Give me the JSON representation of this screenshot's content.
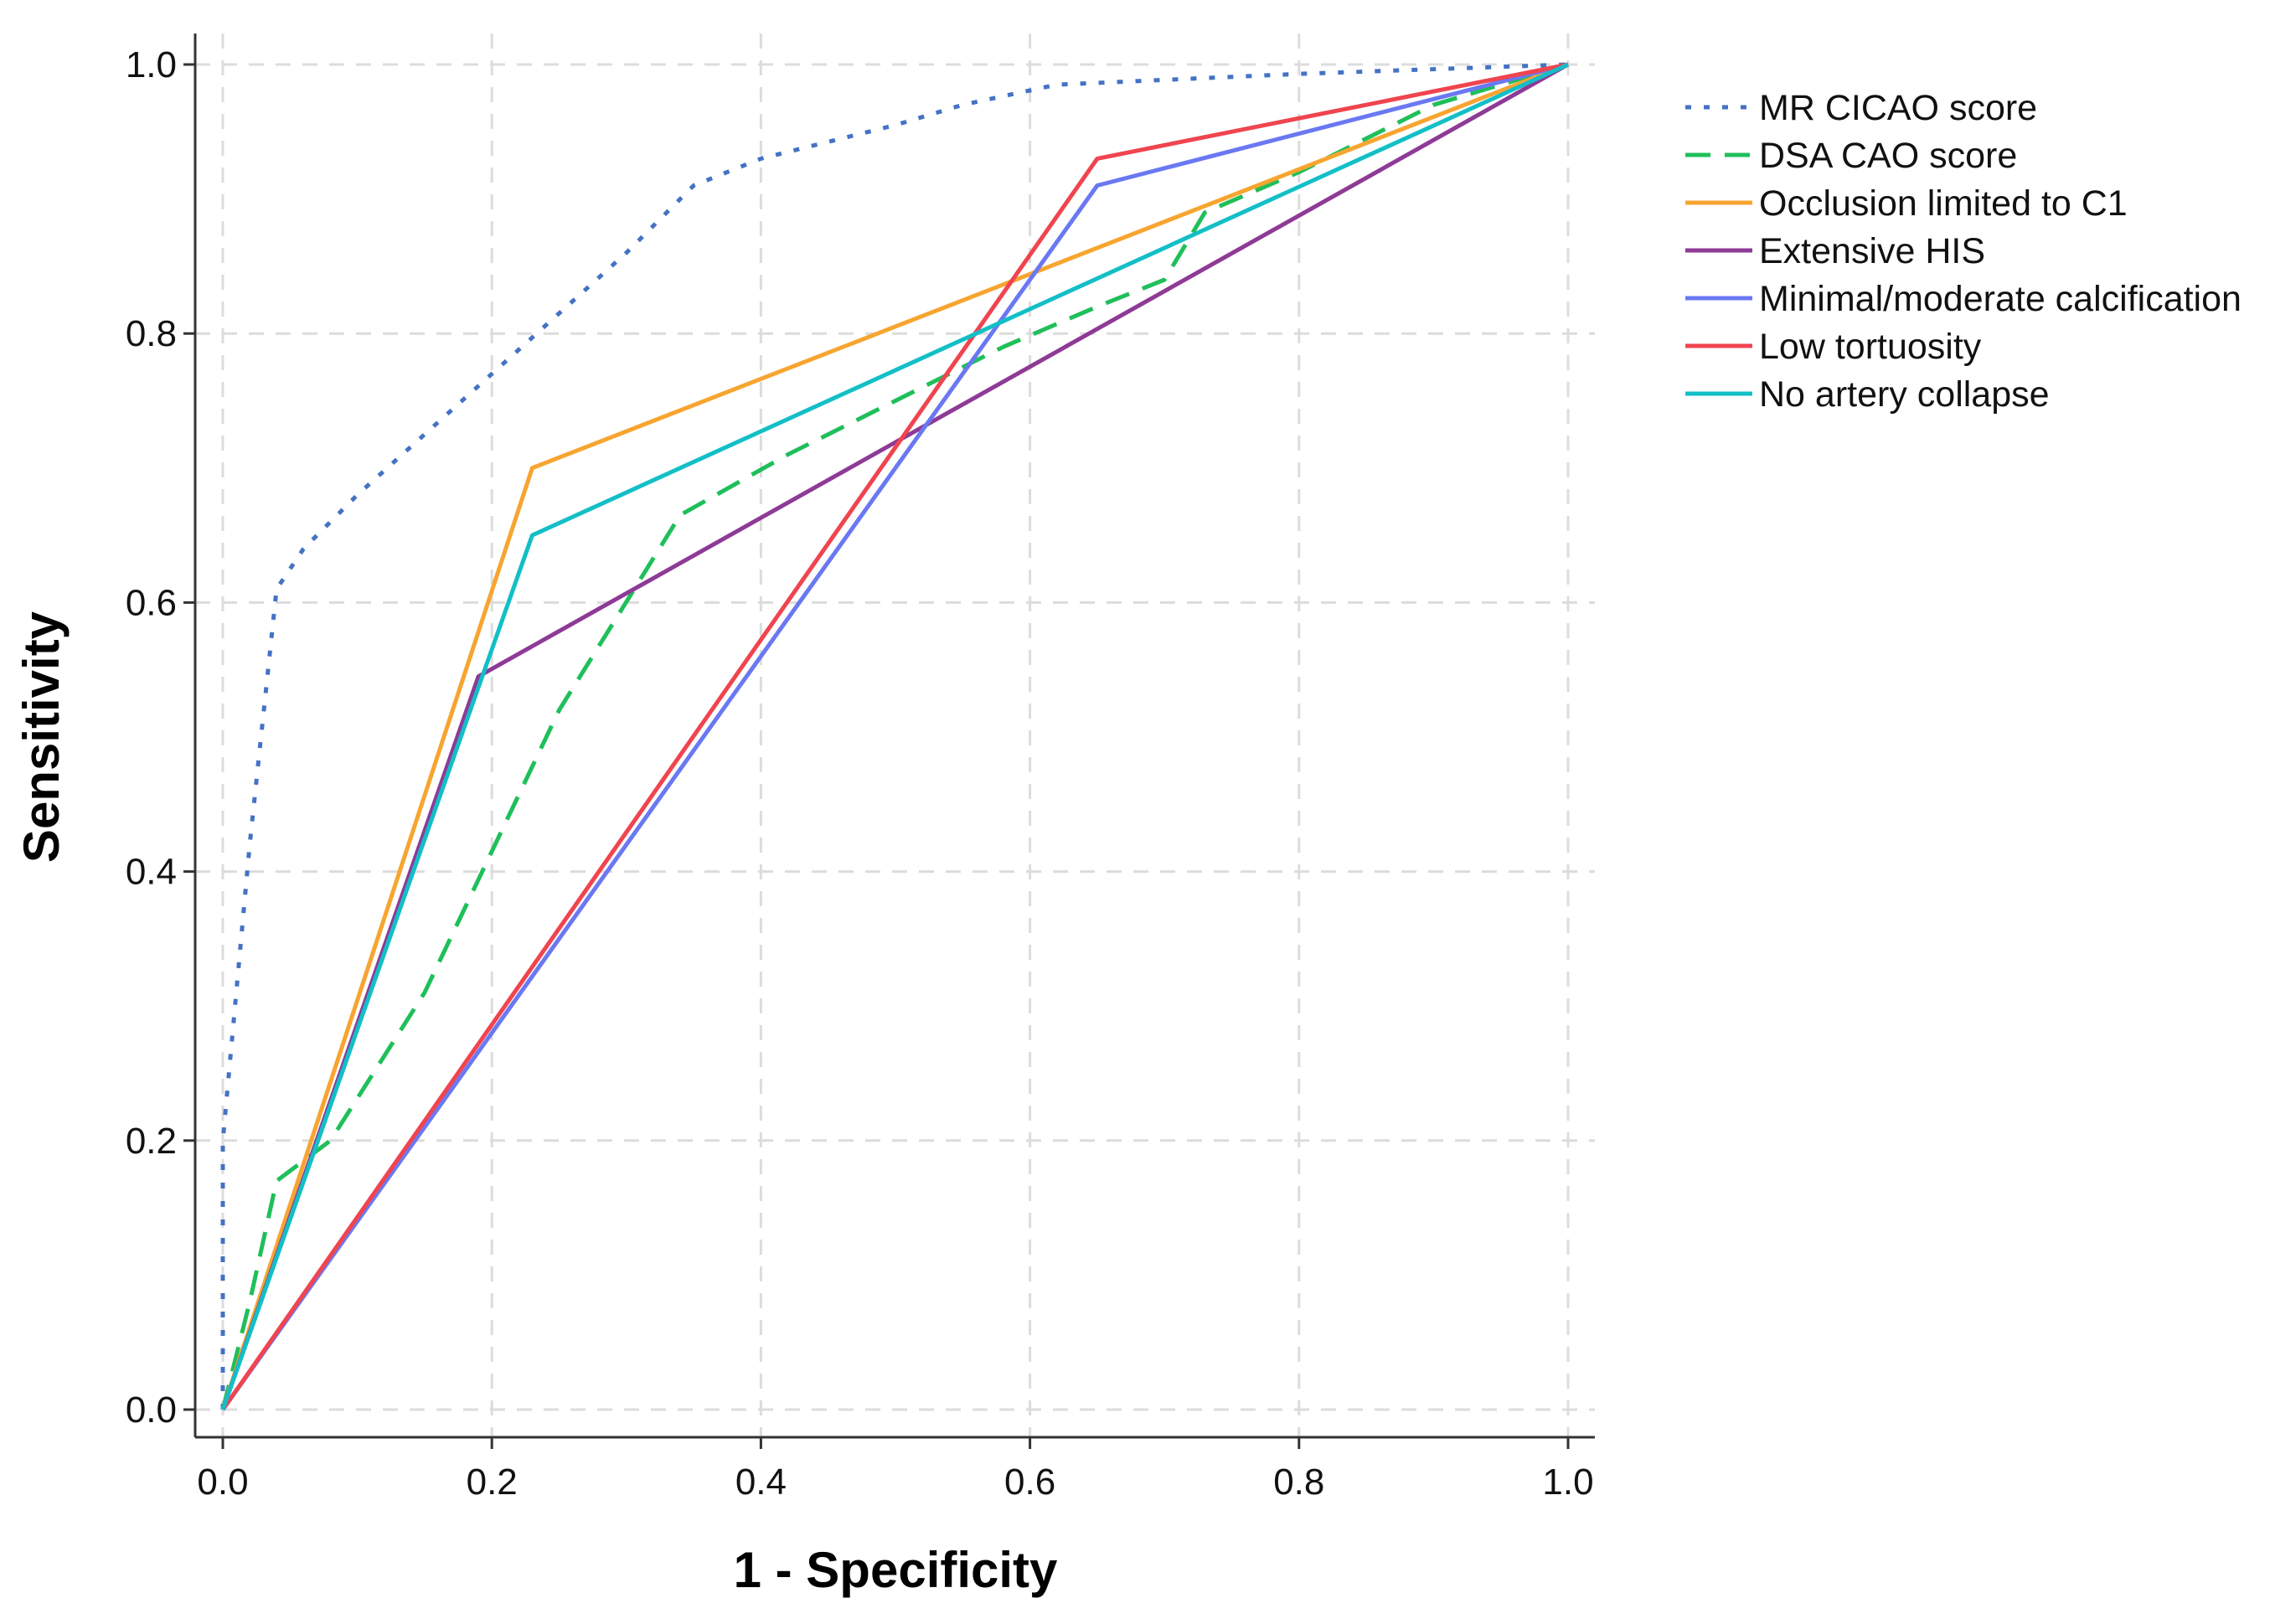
{
  "chart_data": {
    "type": "line",
    "title": "",
    "xlabel": "1 - Specificity",
    "ylabel": "Sensitivity",
    "xlim": [
      0,
      1
    ],
    "ylim": [
      0,
      1
    ],
    "xticks": [
      "0.0",
      "0.2",
      "0.4",
      "0.6",
      "0.8",
      "1.0"
    ],
    "yticks": [
      "0.0",
      "0.2",
      "0.4",
      "0.6",
      "0.8",
      "1.0"
    ],
    "grid": true,
    "legend_position": "right",
    "series": [
      {
        "name": "MR CICAO score",
        "color": "#4472c4",
        "dash": "dotted",
        "x": [
          0.0,
          0.0,
          0.02,
          0.04,
          0.06,
          0.1,
          0.2,
          0.3,
          0.35,
          0.4,
          0.5,
          0.55,
          0.62,
          0.8,
          1.0
        ],
        "y": [
          0.0,
          0.2,
          0.42,
          0.61,
          0.64,
          0.68,
          0.77,
          0.86,
          0.91,
          0.93,
          0.955,
          0.97,
          0.985,
          0.993,
          1.0
        ]
      },
      {
        "name": "DSA CAO score",
        "color": "#1fbf5a",
        "dash": "dashed",
        "x": [
          0.0,
          0.02,
          0.04,
          0.08,
          0.15,
          0.25,
          0.34,
          0.42,
          0.5,
          0.58,
          0.65,
          0.7,
          0.73,
          0.8,
          0.9,
          1.0
        ],
        "y": [
          0.0,
          0.08,
          0.17,
          0.2,
          0.31,
          0.52,
          0.665,
          0.71,
          0.75,
          0.79,
          0.82,
          0.84,
          0.89,
          0.92,
          0.97,
          1.0
        ]
      },
      {
        "name": "Occlusion limited to C1",
        "color": "#f7a530",
        "dash": "solid",
        "x": [
          0.0,
          0.23,
          1.0
        ],
        "y": [
          0.0,
          0.7,
          1.0
        ]
      },
      {
        "name": "Extensive HIS",
        "color": "#8e3a96",
        "dash": "solid",
        "x": [
          0.0,
          0.19,
          1.0
        ],
        "y": [
          0.0,
          0.545,
          1.0
        ]
      },
      {
        "name": "Minimal/moderate calcification",
        "color": "#6a78f2",
        "dash": "solid",
        "x": [
          0.0,
          0.65,
          1.0
        ],
        "y": [
          0.0,
          0.91,
          1.0
        ]
      },
      {
        "name": "Low tortuosity",
        "color": "#f0444f",
        "dash": "solid",
        "x": [
          0.0,
          0.65,
          1.0
        ],
        "y": [
          0.0,
          0.93,
          1.0
        ]
      },
      {
        "name": "No artery collapse",
        "color": "#13bfc7",
        "dash": "solid",
        "x": [
          0.0,
          0.23,
          1.0
        ],
        "y": [
          0.0,
          0.65,
          1.0
        ]
      }
    ]
  }
}
